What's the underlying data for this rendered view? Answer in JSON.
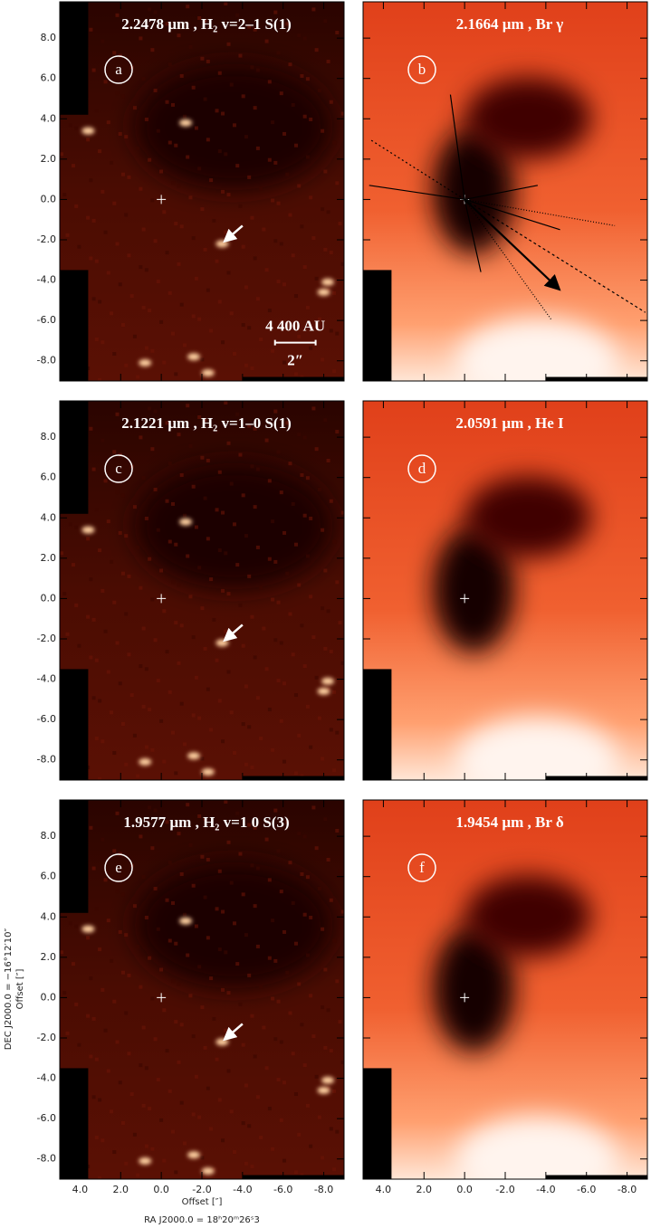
{
  "panels": [
    {
      "title": "2.2478 µm , H₂ v=2–1 S(1)",
      "label": "a",
      "kind": "h2"
    },
    {
      "title": "2.1664 µm , Br γ",
      "label": "b",
      "kind": "br"
    },
    {
      "title": "2.1221 µm , H₂ v=1–0 S(1)",
      "label": "c",
      "kind": "h2"
    },
    {
      "title": "2.0591 µm , He I",
      "label": "d",
      "kind": "br"
    },
    {
      "title": "1.9577 µm , H₂ v=1  0 S(3)",
      "label": "e",
      "kind": "h2"
    },
    {
      "title": "1.9454 µm , Br δ",
      "label": "f",
      "kind": "br"
    }
  ],
  "axes": {
    "xlim": [
      5,
      -9
    ],
    "ylim": [
      -9,
      9.8
    ],
    "xticks": [
      {
        "value": 4,
        "label": "4.0"
      },
      {
        "value": 2,
        "label": "2.0"
      },
      {
        "value": 0,
        "label": "0.0"
      },
      {
        "value": -2,
        "label": "-2.0"
      },
      {
        "value": -4,
        "label": "-4.0"
      },
      {
        "value": -6,
        "label": "-6.0"
      },
      {
        "value": -8,
        "label": "-8.0"
      }
    ],
    "yticks": [
      {
        "value": 8,
        "label": "8.0"
      },
      {
        "value": 6,
        "label": "6.0"
      },
      {
        "value": 4,
        "label": "4.0"
      },
      {
        "value": 2,
        "label": "2.0"
      },
      {
        "value": 0,
        "label": "0.0"
      },
      {
        "value": -2,
        "label": "-2.0"
      },
      {
        "value": -4,
        "label": "-4.0"
      },
      {
        "value": -6,
        "label": "-6.0"
      },
      {
        "value": -8,
        "label": "-8.0"
      }
    ],
    "xlabel": "Offset [″]",
    "ylabel": "Offset [″]",
    "dec_label": "DEC J2000.0 = −16°12′10″",
    "ra_label": "RA J2000.0 = 18ʰ20ᵐ26ˢ3"
  },
  "scale_bar": {
    "length": "4 400 AU",
    "angle": "2″"
  }
}
